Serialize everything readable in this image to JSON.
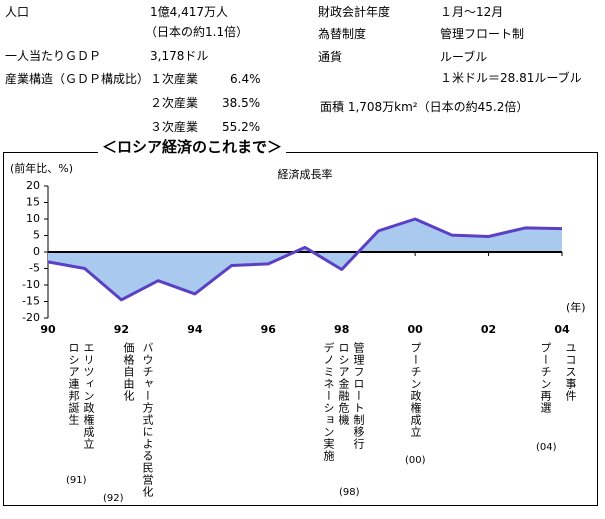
{
  "info": {
    "population": {
      "label": "人口",
      "value": "1億4,417万人",
      "note": "（日本の約1.1倍）"
    },
    "gdp_per_capita": {
      "label": "一人当たりＧＤＰ",
      "value": "3,178ドル"
    },
    "industry": {
      "label": "産業構造（ＧＤＰ構成比）",
      "rows": [
        [
          "１次産業",
          "6.4%"
        ],
        [
          "２次産業",
          "38.5%"
        ],
        [
          "３次産業",
          "55.2%"
        ]
      ]
    },
    "fiscal_year": {
      "label": "財政会計年度",
      "value": "１月～12月"
    },
    "exchange": {
      "label": "為替制度",
      "value": "管理フロート制"
    },
    "currency": {
      "label": "通貨",
      "value": "ルーブル",
      "note": "１米ドル＝28.81ルーブル"
    },
    "area": "面積 1,708万km²（日本の約45.2倍）"
  },
  "section_title": "＜ロシア経済のこれまで＞",
  "chart_data": {
    "type": "area",
    "title": "経済成長率",
    "y_label": "(前年比、%)",
    "x_unit": "(年)",
    "x": [
      1990,
      1991,
      1992,
      1993,
      1994,
      1995,
      1996,
      1997,
      1998,
      1999,
      2000,
      2001,
      2002,
      2003,
      2004
    ],
    "values": [
      -3,
      -5,
      -14.5,
      -8.7,
      -12.7,
      -4.1,
      -3.6,
      1.4,
      -5.3,
      6.4,
      10,
      5.1,
      4.7,
      7.3,
      7.1
    ],
    "line_color": "#5b3fc4",
    "fill_color": "#a9c9ee",
    "xlim": [
      1990,
      2004
    ],
    "xticks": [
      {
        "value": 1990,
        "label": "90"
      },
      {
        "value": 1992,
        "label": "92"
      },
      {
        "value": 1994,
        "label": "94"
      },
      {
        "value": 1996,
        "label": "96"
      },
      {
        "value": 1998,
        "label": "98"
      },
      {
        "value": 2000,
        "label": "00"
      },
      {
        "value": 2002,
        "label": "02"
      },
      {
        "value": 2004,
        "label": "04"
      }
    ],
    "ylim": [
      -20,
      20
    ],
    "yticks": [
      -20,
      -15,
      -10,
      -5,
      0,
      5,
      10,
      15,
      20
    ],
    "annotations": [
      {
        "lines": [
          "エリツィン政権成立",
          "ロシア連邦誕生"
        ],
        "year": "(91)"
      },
      {
        "lines": [
          "バウチャー方式による民営化",
          "価格自由化"
        ],
        "year": "(92)"
      },
      {
        "lines": [
          "管理フロート制移行",
          "ロシア金融危機",
          "デノミネーション実施"
        ],
        "year": "(98)"
      },
      {
        "lines": [
          "プーチン政権成立"
        ],
        "year": "(00)"
      },
      {
        "lines": [
          "ユコス事件",
          "プーチン再選"
        ],
        "year": "(04)"
      }
    ]
  }
}
